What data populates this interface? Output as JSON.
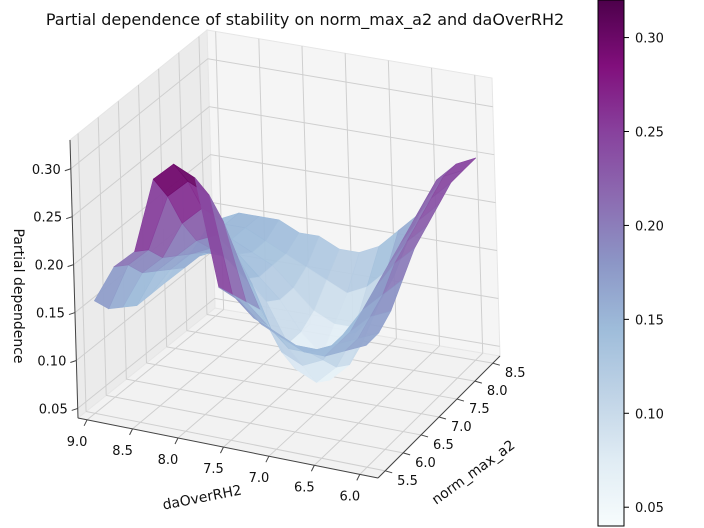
{
  "chart_data": {
    "type": "surface",
    "title": "Partial dependence of stability on norm_max_a2 and daOverRH2",
    "xlabel": "daOverRH2",
    "ylabel": "norm_max_a2",
    "zlabel": "Partial dependence",
    "x_ticks": [
      "9.0",
      "8.5",
      "8.0",
      "7.5",
      "7.0",
      "6.5",
      "6.0"
    ],
    "y_ticks": [
      "5.5",
      "6.0",
      "6.5",
      "7.0",
      "7.5",
      "8.0",
      "8.5"
    ],
    "z_ticks": [
      "0.05",
      "0.10",
      "0.15",
      "0.20",
      "0.25",
      "0.30"
    ],
    "xlim": [
      5.8,
      9.1
    ],
    "ylim": [
      5.3,
      8.7
    ],
    "zlim": [
      0.04,
      0.33
    ],
    "colorbar_ticks": [
      "0.05",
      "0.10",
      "0.15",
      "0.20",
      "0.25",
      "0.30"
    ],
    "colorbar_range": [
      0.04,
      0.32
    ],
    "colormap": "BuPu",
    "colormap_stops": [
      "#f7fcfd",
      "#e0ecf4",
      "#bfd3e6",
      "#9ebcda",
      "#8c96c6",
      "#8c6bb1",
      "#88419d",
      "#810f7c",
      "#4d004b"
    ],
    "surface_profile_rows": [
      [
        0.16,
        0.2,
        0.22,
        0.3,
        0.32,
        0.31,
        0.2,
        0.19,
        0.17,
        0.16,
        0.15,
        0.15,
        0.16,
        0.17
      ],
      [
        0.14,
        0.19,
        0.21,
        0.27,
        0.29,
        0.28,
        0.18,
        0.16,
        0.15,
        0.14,
        0.14,
        0.15,
        0.16,
        0.17
      ],
      [
        0.13,
        0.17,
        0.19,
        0.23,
        0.25,
        0.24,
        0.16,
        0.14,
        0.12,
        0.12,
        0.13,
        0.15,
        0.17,
        0.18
      ],
      [
        0.12,
        0.16,
        0.18,
        0.2,
        0.21,
        0.19,
        0.14,
        0.1,
        0.09,
        0.1,
        0.13,
        0.16,
        0.18,
        0.2
      ],
      [
        0.12,
        0.15,
        0.17,
        0.18,
        0.17,
        0.15,
        0.1,
        0.07,
        0.06,
        0.08,
        0.12,
        0.17,
        0.2,
        0.22
      ],
      [
        0.12,
        0.14,
        0.16,
        0.16,
        0.14,
        0.12,
        0.08,
        0.06,
        0.05,
        0.07,
        0.12,
        0.18,
        0.21,
        0.23
      ],
      [
        0.13,
        0.14,
        0.15,
        0.15,
        0.13,
        0.11,
        0.08,
        0.06,
        0.06,
        0.08,
        0.13,
        0.19,
        0.22,
        0.24
      ],
      [
        0.13,
        0.15,
        0.15,
        0.14,
        0.13,
        0.11,
        0.09,
        0.08,
        0.08,
        0.1,
        0.14,
        0.2,
        0.23,
        0.25
      ],
      [
        0.14,
        0.15,
        0.15,
        0.14,
        0.13,
        0.12,
        0.11,
        0.1,
        0.11,
        0.13,
        0.16,
        0.21,
        0.24,
        0.25
      ],
      [
        0.14,
        0.15,
        0.15,
        0.15,
        0.14,
        0.14,
        0.13,
        0.13,
        0.14,
        0.16,
        0.18,
        0.22,
        0.24,
        0.25
      ]
    ]
  }
}
